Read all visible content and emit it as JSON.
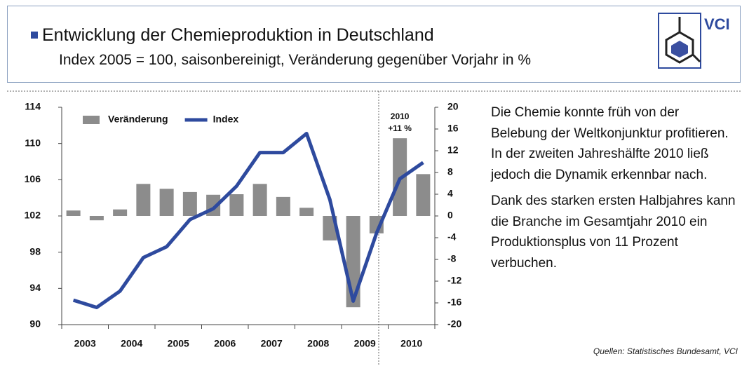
{
  "header": {
    "title": "Entwicklung der Chemieproduktion in Deutschland",
    "subtitle": "Index 2005 = 100, saisonbereinigt, Veränderung gegenüber Vorjahr in %",
    "logo": "VCI"
  },
  "chart_data": {
    "type": "combo",
    "categories": [
      "2003",
      null,
      "2004",
      null,
      "2005",
      null,
      "2006",
      null,
      "2007",
      null,
      "2008",
      null,
      "2009",
      null,
      "2010",
      null
    ],
    "series": [
      {
        "name": "Veränderung",
        "type": "bar",
        "axis": "y2",
        "color": "#8c8c8c",
        "values": [
          1.0,
          -0.8,
          1.2,
          5.9,
          5.0,
          4.4,
          3.9,
          4.0,
          5.9,
          3.5,
          1.5,
          -4.5,
          -16.8,
          -3.2,
          14.3,
          7.7
        ]
      },
      {
        "name": "Index",
        "type": "line",
        "color": "#2e4a9e",
        "values": [
          92.7,
          91.9,
          93.7,
          97.4,
          98.6,
          101.6,
          102.8,
          105.3,
          109.0,
          109.0,
          111.1,
          103.8,
          92.6,
          100.1,
          106.1,
          107.9
        ]
      }
    ],
    "ylim": [
      90,
      114
    ],
    "yticks": [
      90,
      94,
      98,
      102,
      106,
      110,
      114
    ],
    "y2lim": [
      -20,
      20
    ],
    "y2ticks": [
      -20,
      -16,
      -12,
      -8,
      -4,
      0,
      4,
      8,
      12,
      16,
      20
    ],
    "legend": "upper left",
    "annotations": [
      "2010",
      "+11 %"
    ]
  },
  "text": {
    "paragraphs": [
      "Die Chemie konnte früh von der Belebung der Weltkonjunktur profitieren. In der zweiten Jahreshälfte 2010 ließ jedoch die Dynamik erkennbar nach.",
      "Dank des starken ersten Halbjahres kann die Branche im Gesamtjahr 2010 ein Produktionsplus von 11 Prozent verbuchen."
    ]
  },
  "source": "Quellen: Statistisches Bundesamt, VCI"
}
